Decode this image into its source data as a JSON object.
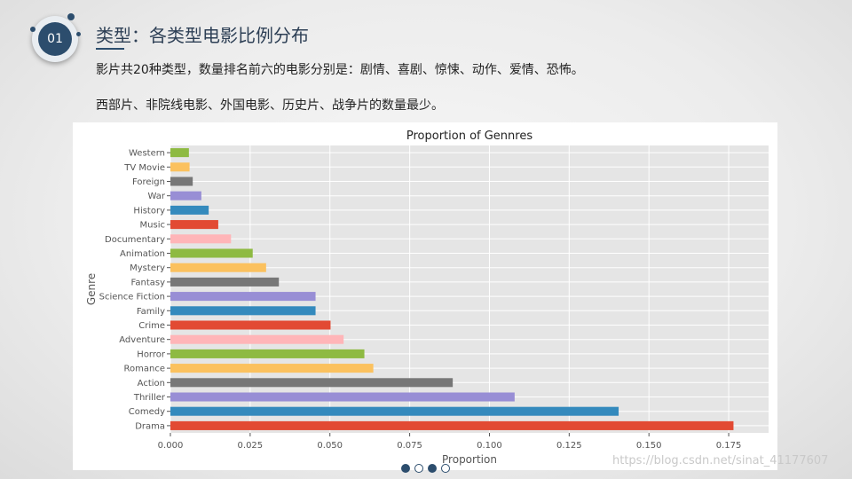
{
  "header": {
    "badge_number": "01",
    "title": "类型：各类型电影比例分布",
    "line1": "影片共20种类型，数量排名前六的电影分别是：剧情、喜剧、惊悚、动作、爱情、恐怖。",
    "line2": "西部片、非院线电影、外国电影、历史片、战争片的数量最少。"
  },
  "watermark": "https://blog.csdn.net/sinat_41177607",
  "pager": {
    "total": 4,
    "active": [
      0,
      2
    ]
  },
  "colors": {
    "accent": "#2c4d6d",
    "plot_bg": "#e5e5e5",
    "palette": [
      "#e24a33",
      "#348abd",
      "#988ed5",
      "#777777",
      "#fbc15e",
      "#8eba42",
      "#ffb5b8"
    ]
  },
  "chart_data": {
    "type": "bar",
    "orientation": "horizontal",
    "title": "Proportion of Gennres",
    "xlabel": "Proportion",
    "ylabel": "Genre",
    "xlim": [
      0,
      0.1875
    ],
    "xticks": [
      "0.000",
      "0.025",
      "0.050",
      "0.075",
      "0.100",
      "0.125",
      "0.150",
      "0.175"
    ],
    "grid": true,
    "categories": [
      "Drama",
      "Comedy",
      "Thriller",
      "Action",
      "Romance",
      "Horror",
      "Adventure",
      "Crime",
      "Family",
      "Science Fiction",
      "Fantasy",
      "Mystery",
      "Animation",
      "Documentary",
      "Music",
      "History",
      "War",
      "Foreign",
      "TV Movie",
      "Western"
    ],
    "values": [
      0.1765,
      0.1405,
      0.1079,
      0.0885,
      0.0636,
      0.0608,
      0.0543,
      0.0502,
      0.0455,
      0.0455,
      0.034,
      0.03,
      0.0258,
      0.019,
      0.015,
      0.012,
      0.0097,
      0.007,
      0.006,
      0.0058
    ]
  }
}
